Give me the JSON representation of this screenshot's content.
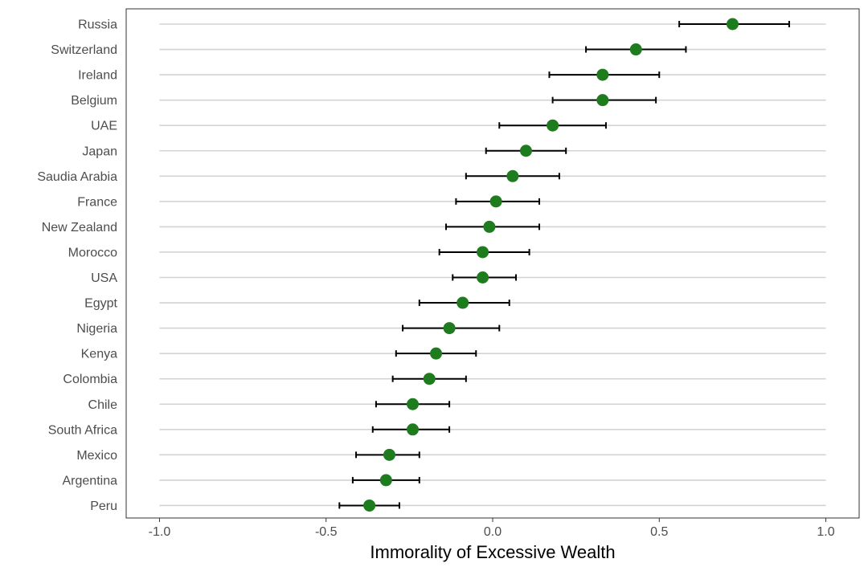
{
  "chart_data": {
    "type": "scatter",
    "title": "",
    "xlabel": "Immorality of Excessive Wealth",
    "ylabel": "",
    "xlim": [
      -1.1,
      1.1
    ],
    "x_ticks": [
      -1.0,
      -0.5,
      0.0,
      0.5,
      1.0
    ],
    "x_tick_labels": [
      "-1.0",
      "-0.5",
      "0.0",
      "0.5",
      "1.0"
    ],
    "grid": "horizontal lines per category",
    "point_color": "#1e7b1e",
    "error_bar_color": "#000000",
    "categories": [
      "Russia",
      "Switzerland",
      "Ireland",
      "Belgium",
      "UAE",
      "Japan",
      "Saudia Arabia",
      "France",
      "New Zealand",
      "Morocco",
      "USA",
      "Egypt",
      "Nigeria",
      "Kenya",
      "Colombia",
      "Chile",
      "South Africa",
      "Mexico",
      "Argentina",
      "Peru"
    ],
    "values": [
      0.72,
      0.43,
      0.33,
      0.33,
      0.18,
      0.1,
      0.06,
      0.01,
      -0.01,
      -0.03,
      -0.03,
      -0.09,
      -0.13,
      -0.17,
      -0.19,
      -0.24,
      -0.24,
      -0.31,
      -0.32,
      -0.37
    ],
    "lower": [
      0.56,
      0.28,
      0.17,
      0.18,
      0.02,
      -0.02,
      -0.08,
      -0.11,
      -0.14,
      -0.16,
      -0.12,
      -0.22,
      -0.27,
      -0.29,
      -0.3,
      -0.35,
      -0.36,
      -0.41,
      -0.42,
      -0.46
    ],
    "upper": [
      0.89,
      0.58,
      0.5,
      0.49,
      0.34,
      0.22,
      0.2,
      0.14,
      0.14,
      0.11,
      0.07,
      0.05,
      0.02,
      -0.05,
      -0.08,
      -0.13,
      -0.13,
      -0.22,
      -0.22,
      -0.28
    ]
  }
}
